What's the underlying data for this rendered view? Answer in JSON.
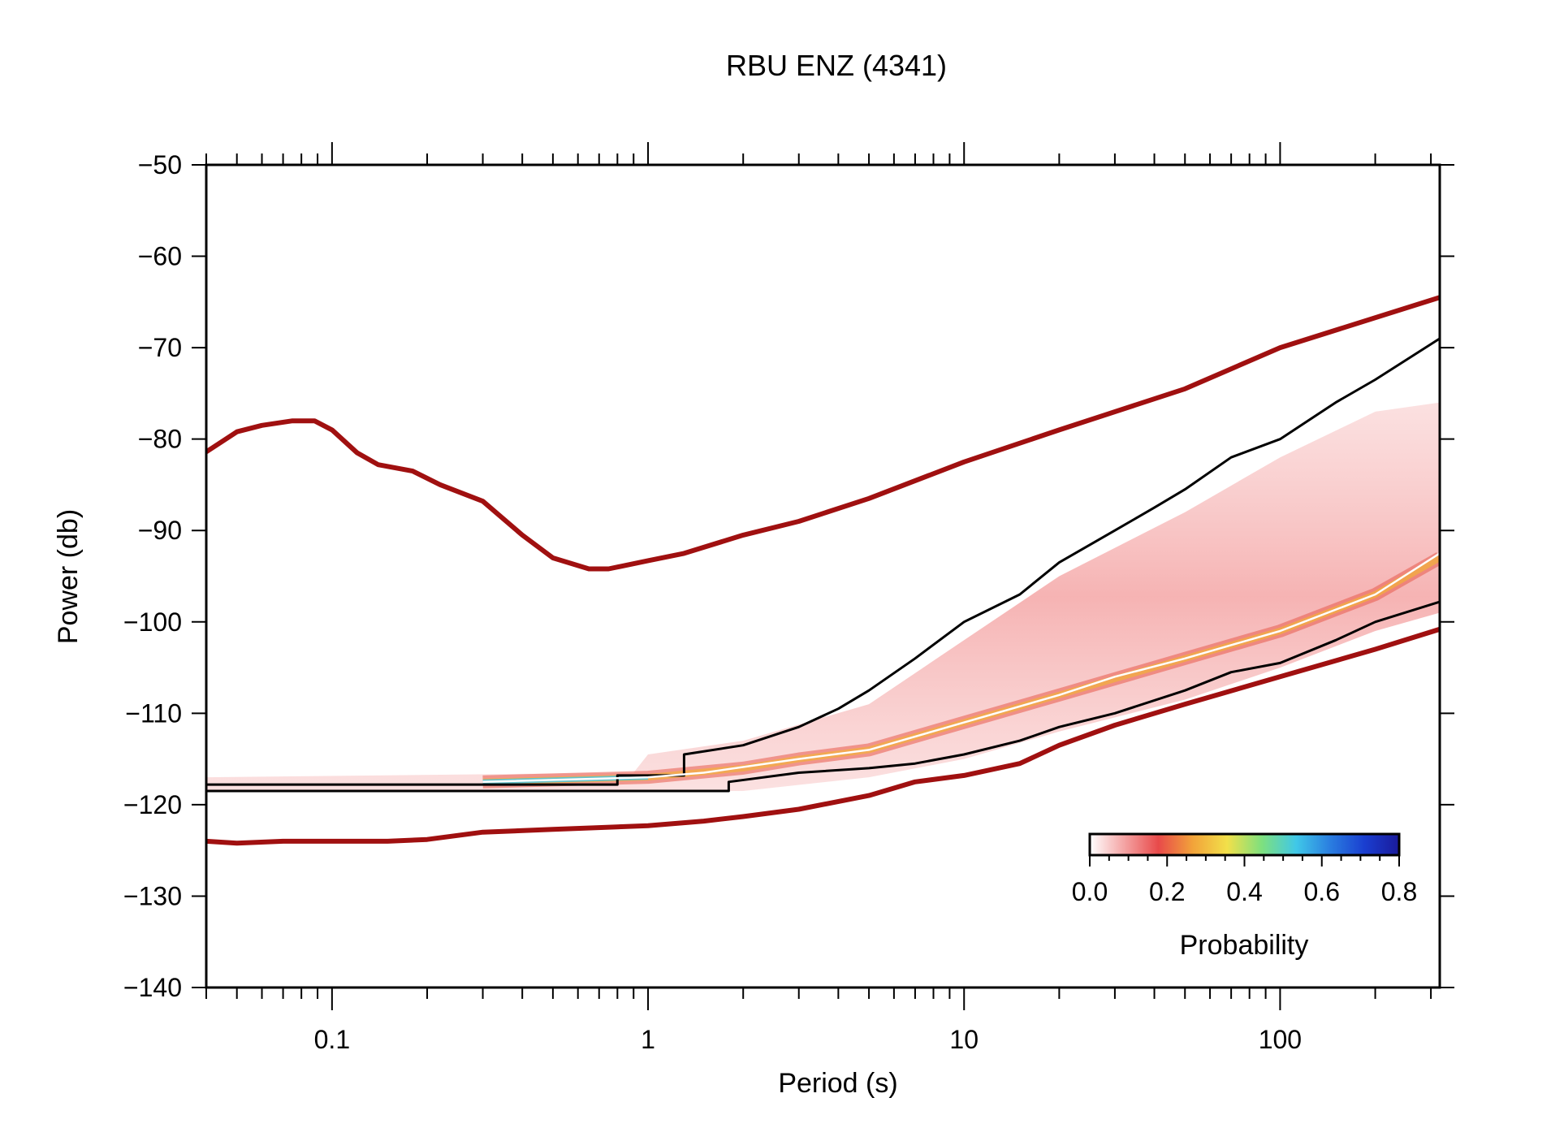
{
  "chart_data": {
    "type": "line",
    "title": "RBU ENZ (4341)",
    "xlabel": "Period (s)",
    "ylabel": "Power (db)",
    "x_scale": "log",
    "xlim": [
      0.04,
      320
    ],
    "ylim": [
      -140,
      -50
    ],
    "x_ticks": [
      0.1,
      1,
      10,
      100
    ],
    "x_tick_labels": [
      "0.1",
      "1",
      "10",
      "100"
    ],
    "y_ticks": [
      -50,
      -60,
      -70,
      -80,
      -90,
      -100,
      -110,
      -120,
      -130,
      -140
    ],
    "y_tick_labels": [
      "−50",
      "−60",
      "−70",
      "−80",
      "−90",
      "−100",
      "−110",
      "−120",
      "−130",
      "−140"
    ],
    "grid": false,
    "colorbar": {
      "label": "Probability",
      "ticks": [
        0.0,
        0.2,
        0.4,
        0.6,
        0.8
      ],
      "tick_labels": [
        "0.0",
        "0.2",
        "0.4",
        "0.6",
        "0.8"
      ],
      "colors": [
        "#ffffff",
        "#f4a4a4",
        "#e84a4a",
        "#f2a33a",
        "#f2e04a",
        "#7ee07e",
        "#40c8e8",
        "#2a7de0",
        "#1a3ed0",
        "#1a1a9a"
      ],
      "placement": "lower-right"
    },
    "series": [
      {
        "color": "#a01010",
        "points": [
          [
            0.04,
            -81.4
          ],
          [
            0.05,
            -79.2
          ],
          [
            0.06,
            -78.5
          ],
          [
            0.075,
            -78
          ],
          [
            0.088,
            -78
          ],
          [
            0.1,
            -79
          ],
          [
            0.12,
            -81.5
          ],
          [
            0.14,
            -82.8
          ],
          [
            0.18,
            -83.5
          ],
          [
            0.22,
            -85
          ],
          [
            0.3,
            -86.8
          ],
          [
            0.4,
            -90.5
          ],
          [
            0.5,
            -93
          ],
          [
            0.65,
            -94.2
          ],
          [
            0.75,
            -94.2
          ],
          [
            1,
            -93.3
          ],
          [
            1.3,
            -92.5
          ],
          [
            2,
            -90.5
          ],
          [
            3,
            -89
          ],
          [
            5,
            -86.5
          ],
          [
            10,
            -82.5
          ],
          [
            20,
            -79
          ],
          [
            50,
            -74.5
          ],
          [
            100,
            -70
          ],
          [
            320,
            -64.5
          ]
        ]
      },
      {
        "color": "#a01010",
        "points": [
          [
            0.04,
            -124
          ],
          [
            0.05,
            -124.2
          ],
          [
            0.07,
            -124
          ],
          [
            0.1,
            -124
          ],
          [
            0.15,
            -124
          ],
          [
            0.2,
            -123.8
          ],
          [
            0.3,
            -123
          ],
          [
            0.5,
            -122.7
          ],
          [
            1,
            -122.3
          ],
          [
            1.5,
            -121.8
          ],
          [
            2,
            -121.3
          ],
          [
            3,
            -120.5
          ],
          [
            5,
            -119
          ],
          [
            7,
            -117.5
          ],
          [
            10,
            -116.8
          ],
          [
            15,
            -115.5
          ],
          [
            20,
            -113.5
          ],
          [
            30,
            -111.3
          ],
          [
            50,
            -109
          ],
          [
            100,
            -106
          ],
          [
            200,
            -103
          ],
          [
            320,
            -100.8
          ]
        ]
      },
      {
        "color": "#000000",
        "points": [
          [
            0.04,
            -117.8
          ],
          [
            0.8,
            -117.8
          ],
          [
            0.8,
            -116.8
          ],
          [
            1.3,
            -116.8
          ],
          [
            1.3,
            -114.5
          ],
          [
            2,
            -113.5
          ],
          [
            3,
            -111.5
          ],
          [
            4,
            -109.5
          ],
          [
            5,
            -107.5
          ],
          [
            7,
            -104
          ],
          [
            10,
            -100
          ],
          [
            15,
            -97
          ],
          [
            20,
            -93.5
          ],
          [
            30,
            -90
          ],
          [
            40,
            -87.5
          ],
          [
            50,
            -85.5
          ],
          [
            70,
            -82
          ],
          [
            100,
            -80
          ],
          [
            150,
            -76
          ],
          [
            200,
            -73.5
          ],
          [
            320,
            -69
          ]
        ]
      },
      {
        "color": "#000000",
        "points": [
          [
            0.04,
            -118.5
          ],
          [
            1.8,
            -118.5
          ],
          [
            1.8,
            -117.5
          ],
          [
            3,
            -116.5
          ],
          [
            5,
            -116
          ],
          [
            7,
            -115.5
          ],
          [
            10,
            -114.5
          ],
          [
            15,
            -113
          ],
          [
            20,
            -111.5
          ],
          [
            30,
            -110
          ],
          [
            50,
            -107.5
          ],
          [
            70,
            -105.5
          ],
          [
            100,
            -104.5
          ],
          [
            150,
            -102
          ],
          [
            200,
            -100
          ],
          [
            320,
            -97.8
          ]
        ]
      },
      {
        "color": "#ffffff",
        "points": [
          [
            0.3,
            -117.5
          ],
          [
            1,
            -117
          ],
          [
            1.5,
            -116.5
          ],
          [
            3,
            -115
          ],
          [
            5,
            -114
          ],
          [
            10,
            -111
          ],
          [
            20,
            -108
          ],
          [
            30,
            -106
          ],
          [
            50,
            -104
          ],
          [
            100,
            -101
          ],
          [
            200,
            -97
          ],
          [
            320,
            -92.5
          ]
        ]
      }
    ],
    "density_band": {
      "upper": [
        [
          0.04,
          -117
        ],
        [
          0.9,
          -116.5
        ],
        [
          1,
          -114.5
        ],
        [
          2,
          -113
        ],
        [
          5,
          -109
        ],
        [
          10,
          -102
        ],
        [
          20,
          -95
        ],
        [
          50,
          -88
        ],
        [
          100,
          -82
        ],
        [
          200,
          -77
        ],
        [
          320,
          -76
        ]
      ],
      "lower": [
        [
          0.04,
          -118.5
        ],
        [
          1,
          -118.5
        ],
        [
          2,
          -118.5
        ],
        [
          5,
          -117
        ],
        [
          10,
          -115
        ],
        [
          20,
          -112
        ],
        [
          50,
          -108.5
        ],
        [
          100,
          -105
        ],
        [
          200,
          -101
        ],
        [
          320,
          -99
        ]
      ],
      "core": [
        [
          0.3,
          -117.5
        ],
        [
          1,
          -117
        ],
        [
          2,
          -116
        ],
        [
          3,
          -115
        ],
        [
          5,
          -114
        ],
        [
          10,
          -111
        ],
        [
          20,
          -108
        ],
        [
          50,
          -104
        ],
        [
          100,
          -101
        ],
        [
          200,
          -97
        ],
        [
          320,
          -93
        ]
      ]
    }
  }
}
